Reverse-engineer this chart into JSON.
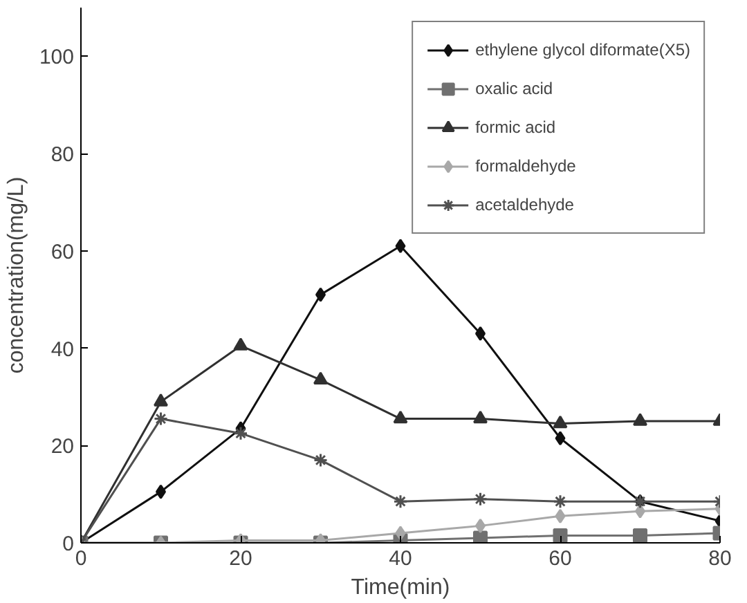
{
  "chart_data": {
    "type": "line",
    "xlabel": "Time(min)",
    "ylabel": "concentration(mg/L)",
    "x": [
      0,
      10,
      20,
      30,
      40,
      50,
      60,
      70,
      80
    ],
    "xlim": [
      0,
      80
    ],
    "xticks": [
      0,
      20,
      40,
      60,
      80
    ],
    "ylim": [
      0,
      110
    ],
    "yticks": [
      0,
      20,
      40,
      60,
      80,
      100
    ],
    "grid": false,
    "legend": "top right",
    "line_style": "solid",
    "series": [
      {
        "name": "ethylene glycol diformate(X5)",
        "color": "#101010",
        "marker": "diamond",
        "values": [
          0,
          10.5,
          23.5,
          51,
          61,
          43,
          21.5,
          8.5,
          4.5
        ]
      },
      {
        "name": "oxalic acid",
        "color": "#707070",
        "marker": "square",
        "values": [
          0,
          0,
          0,
          0,
          0.5,
          1,
          1.5,
          1.5,
          2
        ]
      },
      {
        "name": "formic acid",
        "color": "#303030",
        "marker": "triangle",
        "values": [
          0,
          29,
          40.5,
          33.5,
          25.5,
          25.5,
          24.5,
          25,
          25
        ]
      },
      {
        "name": "formaldehyde",
        "color": "#a8a8a8",
        "marker": "diamond",
        "values": [
          0,
          0,
          0.5,
          0.5,
          2,
          3.5,
          5.5,
          6.5,
          7
        ]
      },
      {
        "name": "acetaldehyde",
        "color": "#505050",
        "marker": "cross",
        "values": [
          0,
          25.5,
          22.5,
          17,
          8.5,
          9,
          8.5,
          8.5,
          8.5
        ]
      }
    ]
  }
}
